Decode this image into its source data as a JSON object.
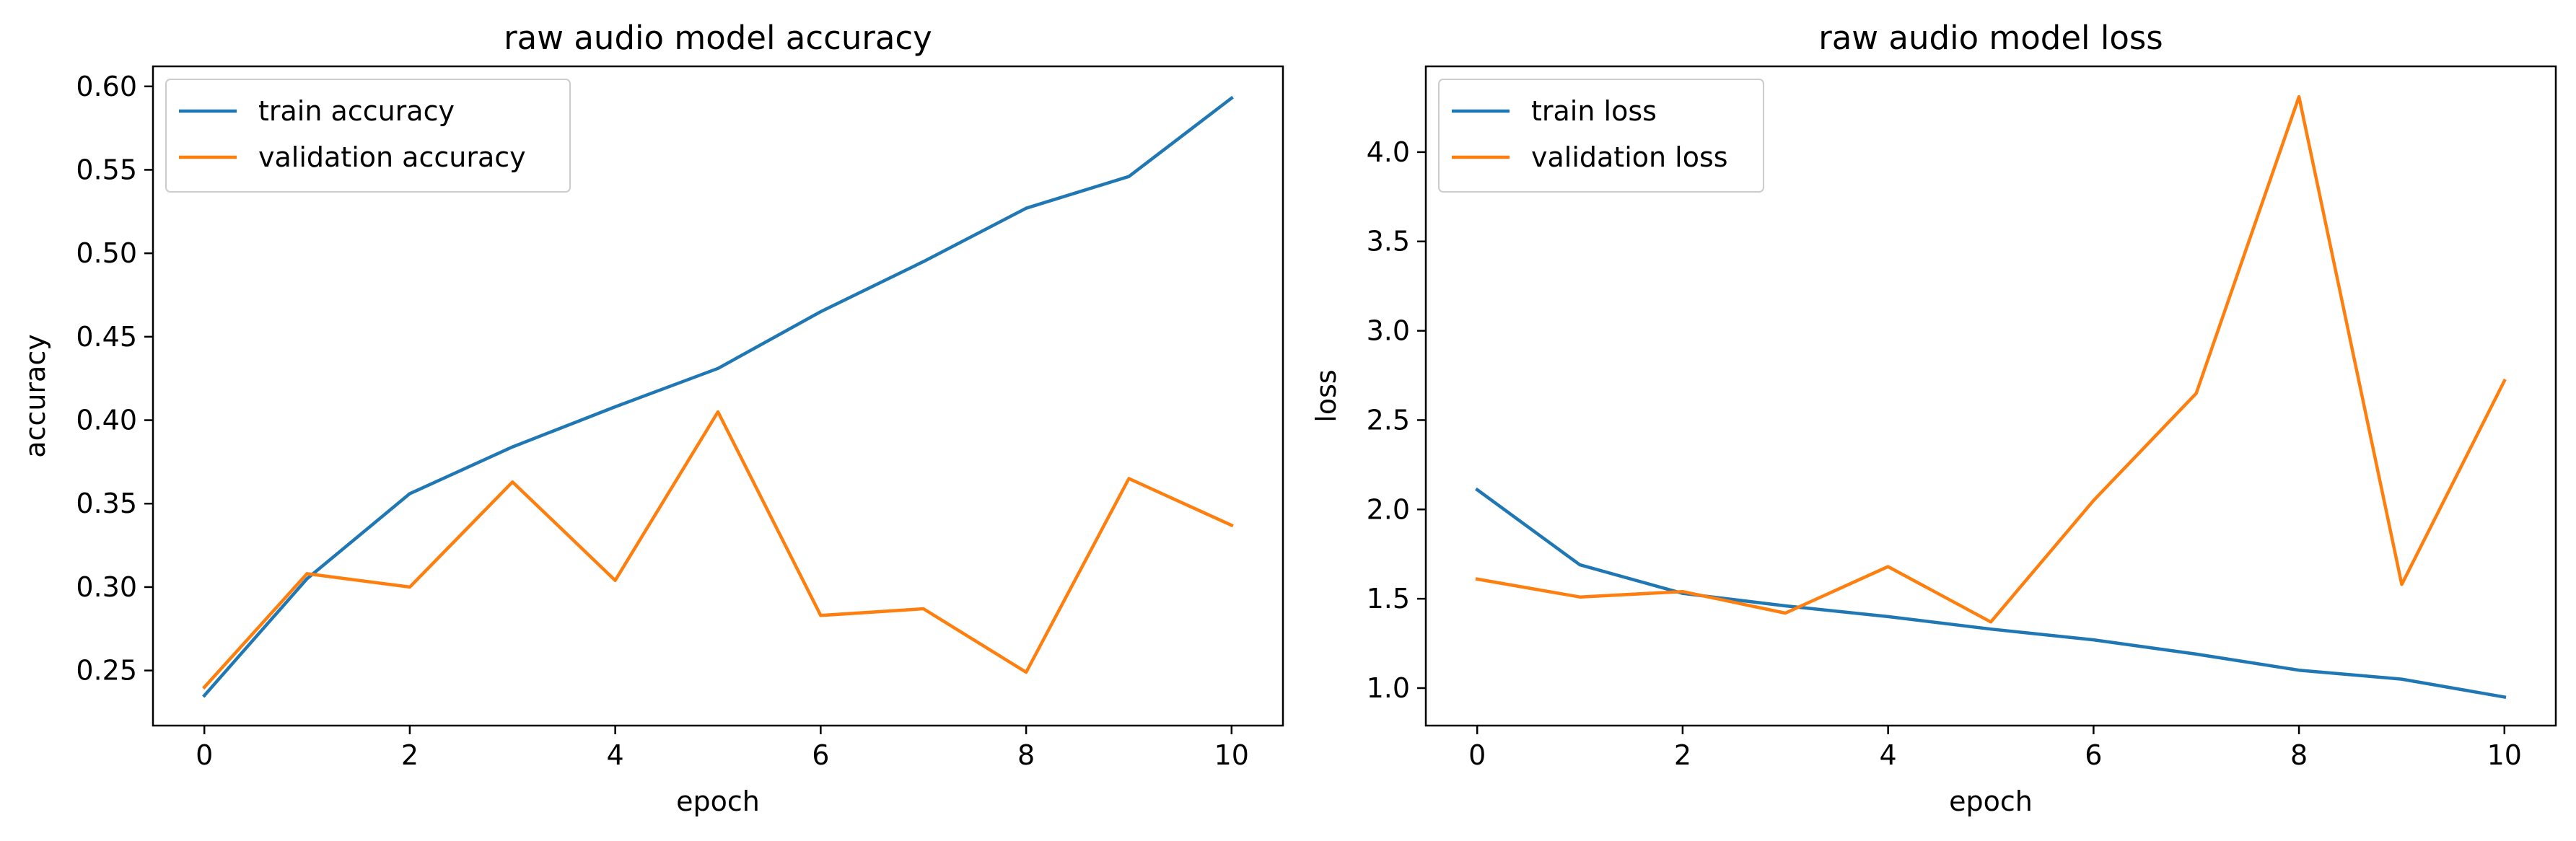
{
  "chart_data": [
    {
      "type": "line",
      "title": "raw audio model accuracy",
      "xlabel": "epoch",
      "ylabel": "accuracy",
      "x": [
        0,
        1,
        2,
        3,
        4,
        5,
        6,
        7,
        8,
        9,
        10
      ],
      "xlim": [
        -0.5,
        10.5
      ],
      "ylim": [
        0.217,
        0.612
      ],
      "xticks": [
        0,
        2,
        4,
        6,
        8,
        10
      ],
      "xtick_labels": [
        "0",
        "2",
        "4",
        "6",
        "8",
        "10"
      ],
      "yticks": [
        0.25,
        0.3,
        0.35,
        0.4,
        0.45,
        0.5,
        0.55,
        0.6
      ],
      "ytick_labels": [
        "0.25",
        "0.30",
        "0.35",
        "0.40",
        "0.45",
        "0.50",
        "0.55",
        "0.60"
      ],
      "grid": false,
      "legend_position": "upper-left",
      "series": [
        {
          "name": "train accuracy",
          "color": "#1f77b4",
          "values": [
            0.235,
            0.305,
            0.356,
            0.384,
            0.408,
            0.431,
            0.465,
            0.495,
            0.527,
            0.546,
            0.593
          ]
        },
        {
          "name": "validation accuracy",
          "color": "#ff7f0e",
          "values": [
            0.24,
            0.308,
            0.3,
            0.363,
            0.304,
            0.405,
            0.283,
            0.287,
            0.249,
            0.365,
            0.337
          ]
        }
      ]
    },
    {
      "type": "line",
      "title": "raw audio model loss",
      "xlabel": "epoch",
      "ylabel": "loss",
      "x": [
        0,
        1,
        2,
        3,
        4,
        5,
        6,
        7,
        8,
        9,
        10
      ],
      "xlim": [
        -0.5,
        10.5
      ],
      "ylim": [
        0.79,
        4.48
      ],
      "xticks": [
        0,
        2,
        4,
        6,
        8,
        10
      ],
      "xtick_labels": [
        "0",
        "2",
        "4",
        "6",
        "8",
        "10"
      ],
      "yticks": [
        1.0,
        1.5,
        2.0,
        2.5,
        3.0,
        3.5,
        4.0
      ],
      "ytick_labels": [
        "1.0",
        "1.5",
        "2.0",
        "2.5",
        "3.0",
        "3.5",
        "4.0"
      ],
      "grid": false,
      "legend_position": "upper-left",
      "series": [
        {
          "name": "train loss",
          "color": "#1f77b4",
          "values": [
            2.11,
            1.69,
            1.53,
            1.46,
            1.4,
            1.33,
            1.27,
            1.19,
            1.1,
            1.05,
            0.95
          ]
        },
        {
          "name": "validation loss",
          "color": "#ff7f0e",
          "values": [
            1.61,
            1.51,
            1.54,
            1.42,
            1.68,
            1.37,
            2.05,
            2.65,
            4.31,
            1.58,
            2.72
          ]
        }
      ]
    }
  ]
}
